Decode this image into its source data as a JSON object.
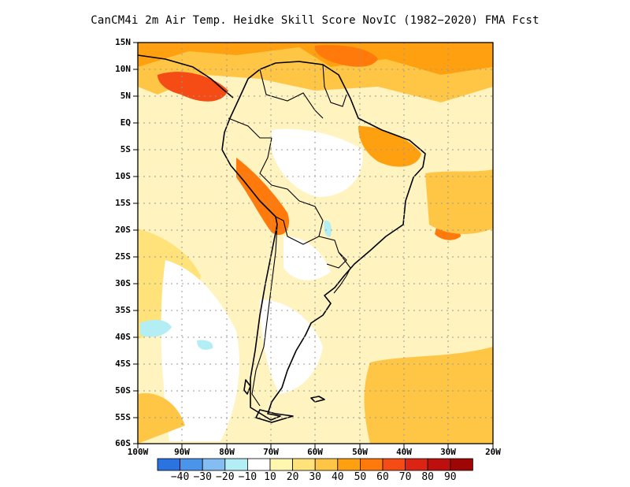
{
  "title": "CanCM4i  2m Air Temp. Heidke Skill Score NovIC (1982−2020) FMA Fcst",
  "lat_labels": [
    "15N",
    "10N",
    "5N",
    "EQ",
    "5S",
    "10S",
    "15S",
    "20S",
    "25S",
    "30S",
    "35S",
    "40S",
    "45S",
    "50S",
    "55S",
    "60S"
  ],
  "lon_labels": [
    "100W",
    "90W",
    "80W",
    "70W",
    "60W",
    "50W",
    "40W",
    "30W",
    "20W"
  ],
  "colorbar": {
    "colors": [
      "#2a73e0",
      "#4a95ea",
      "#84bdf2",
      "#b4eef5",
      "#ffffff",
      "#fff6b0",
      "#ffe27a",
      "#ffc646",
      "#ffa010",
      "#ff7a0a",
      "#f54b14",
      "#dc2414",
      "#be0f0f",
      "#9e0505"
    ],
    "labels": [
      "−40",
      "−30",
      "−20",
      "−10",
      "10",
      "20",
      "30",
      "40",
      "50",
      "60",
      "70",
      "80",
      "90"
    ]
  },
  "colors": {
    "white": "#ffffff",
    "light_yellow": "#fff3c0",
    "yellow": "#ffe27a",
    "gold": "#ffc646",
    "orange": "#ffa010",
    "dark_orange": "#ff7a0a",
    "red_orange": "#f54b14",
    "cyan": "#b4eef5",
    "coast": "#000000"
  }
}
